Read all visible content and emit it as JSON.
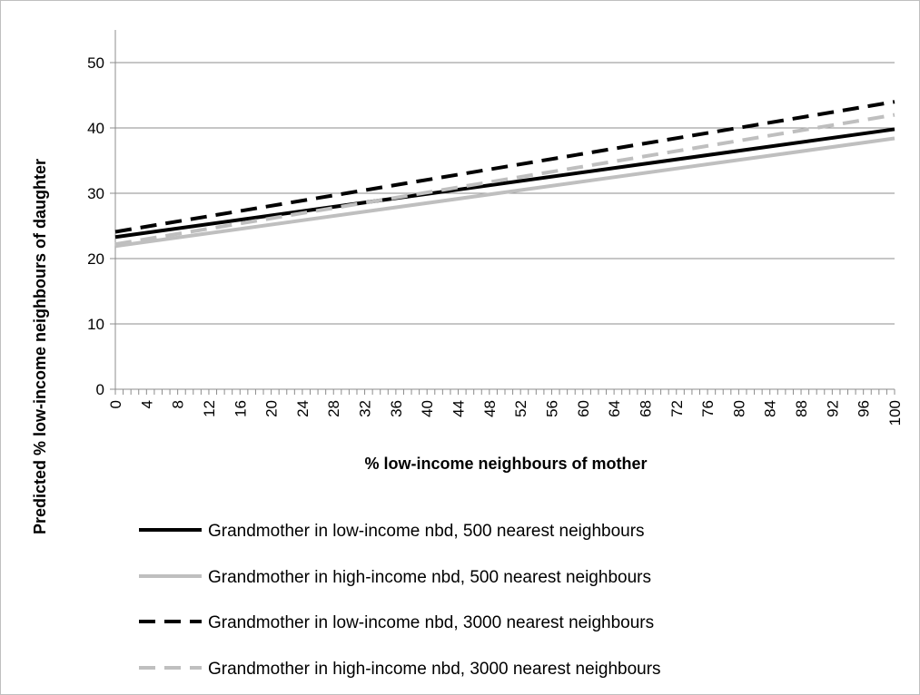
{
  "chart_data": {
    "type": "line",
    "title": "",
    "xlabel": "% low-income neighbours of mother",
    "ylabel": "Predicted % low-income neighbours of daughter",
    "xlim": [
      0,
      100
    ],
    "ylim": [
      0,
      55
    ],
    "x_tick_labels": [
      "0",
      "4",
      "8",
      "12",
      "16",
      "20",
      "24",
      "28",
      "32",
      "36",
      "40",
      "44",
      "48",
      "52",
      "56",
      "60",
      "64",
      "68",
      "72",
      "76",
      "80",
      "84",
      "88",
      "92",
      "96",
      "100"
    ],
    "y_tick_labels": [
      "0",
      "10",
      "20",
      "30",
      "40",
      "50"
    ],
    "grid": "horizontal",
    "legend_position": "bottom",
    "series": [
      {
        "name": "Grandmother in low-income nbd, 500 nearest neighbours",
        "x": [
          0,
          100
        ],
        "y": [
          23.3,
          39.8
        ],
        "color": "#000000",
        "style": "solid"
      },
      {
        "name": "Grandmother in high-income nbd, 500 nearest neighbours",
        "x": [
          0,
          100
        ],
        "y": [
          21.9,
          38.4
        ],
        "color": "#bfbfbf",
        "style": "solid"
      },
      {
        "name": "Grandmother in low-income nbd, 3000 nearest neighbours",
        "x": [
          0,
          100
        ],
        "y": [
          24.1,
          44.0
        ],
        "color": "#000000",
        "style": "dashed"
      },
      {
        "name": "Grandmother in high-income nbd, 3000 nearest neighbours",
        "x": [
          0,
          100
        ],
        "y": [
          22.2,
          42.0
        ],
        "color": "#bfbfbf",
        "style": "dashed"
      }
    ]
  }
}
